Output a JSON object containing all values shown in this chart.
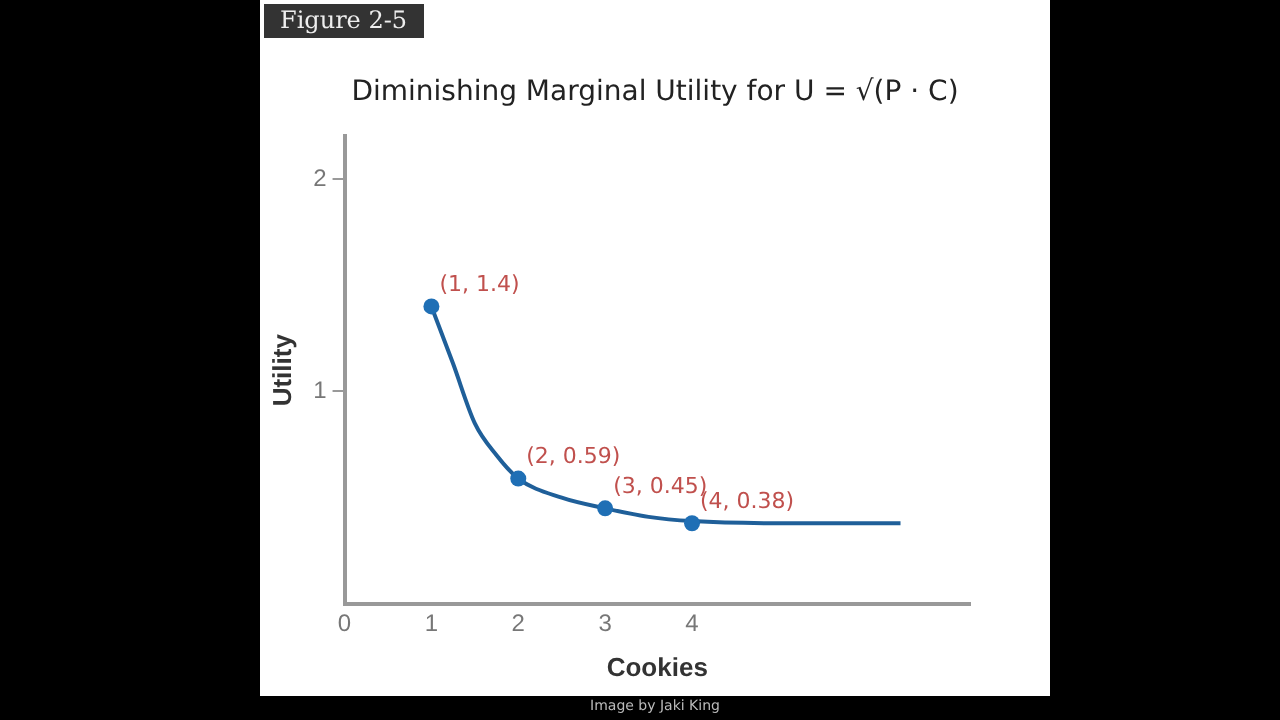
{
  "chart_data": {
    "type": "line",
    "title": "Diminishing Marginal Utility for U = √(P · C)",
    "xlabel": "Cookies",
    "ylabel": "Utility",
    "annotations": [
      "Figure 2-5",
      "Image by Jaki King"
    ],
    "xlim": [
      0,
      7.2
    ],
    "xticks": [
      0,
      1,
      2,
      3,
      4
    ],
    "ylim": [
      0,
      2.2
    ],
    "yticks": [
      1,
      2
    ],
    "grid": false,
    "legend": false,
    "series": [
      {
        "type": "line",
        "color": "#1f5f99",
        "marker": "none",
        "x": [
          1,
          1.25,
          1.5,
          1.75,
          2,
          2.5,
          3,
          3.5,
          4,
          5,
          6.4
        ],
        "values": [
          1.4,
          1.13,
          0.85,
          0.7,
          0.59,
          0.5,
          0.45,
          0.41,
          0.39,
          0.38,
          0.38
        ]
      },
      {
        "type": "scatter",
        "color": "#1f6fb5",
        "marker": "circle",
        "x": [
          1,
          2,
          3,
          4
        ],
        "values": [
          1.4,
          0.59,
          0.45,
          0.38
        ],
        "value_labels": [
          "(1, 1.4)",
          "(2, 0.59)",
          "(3, 0.45)",
          "(4, 0.38)"
        ]
      }
    ]
  }
}
